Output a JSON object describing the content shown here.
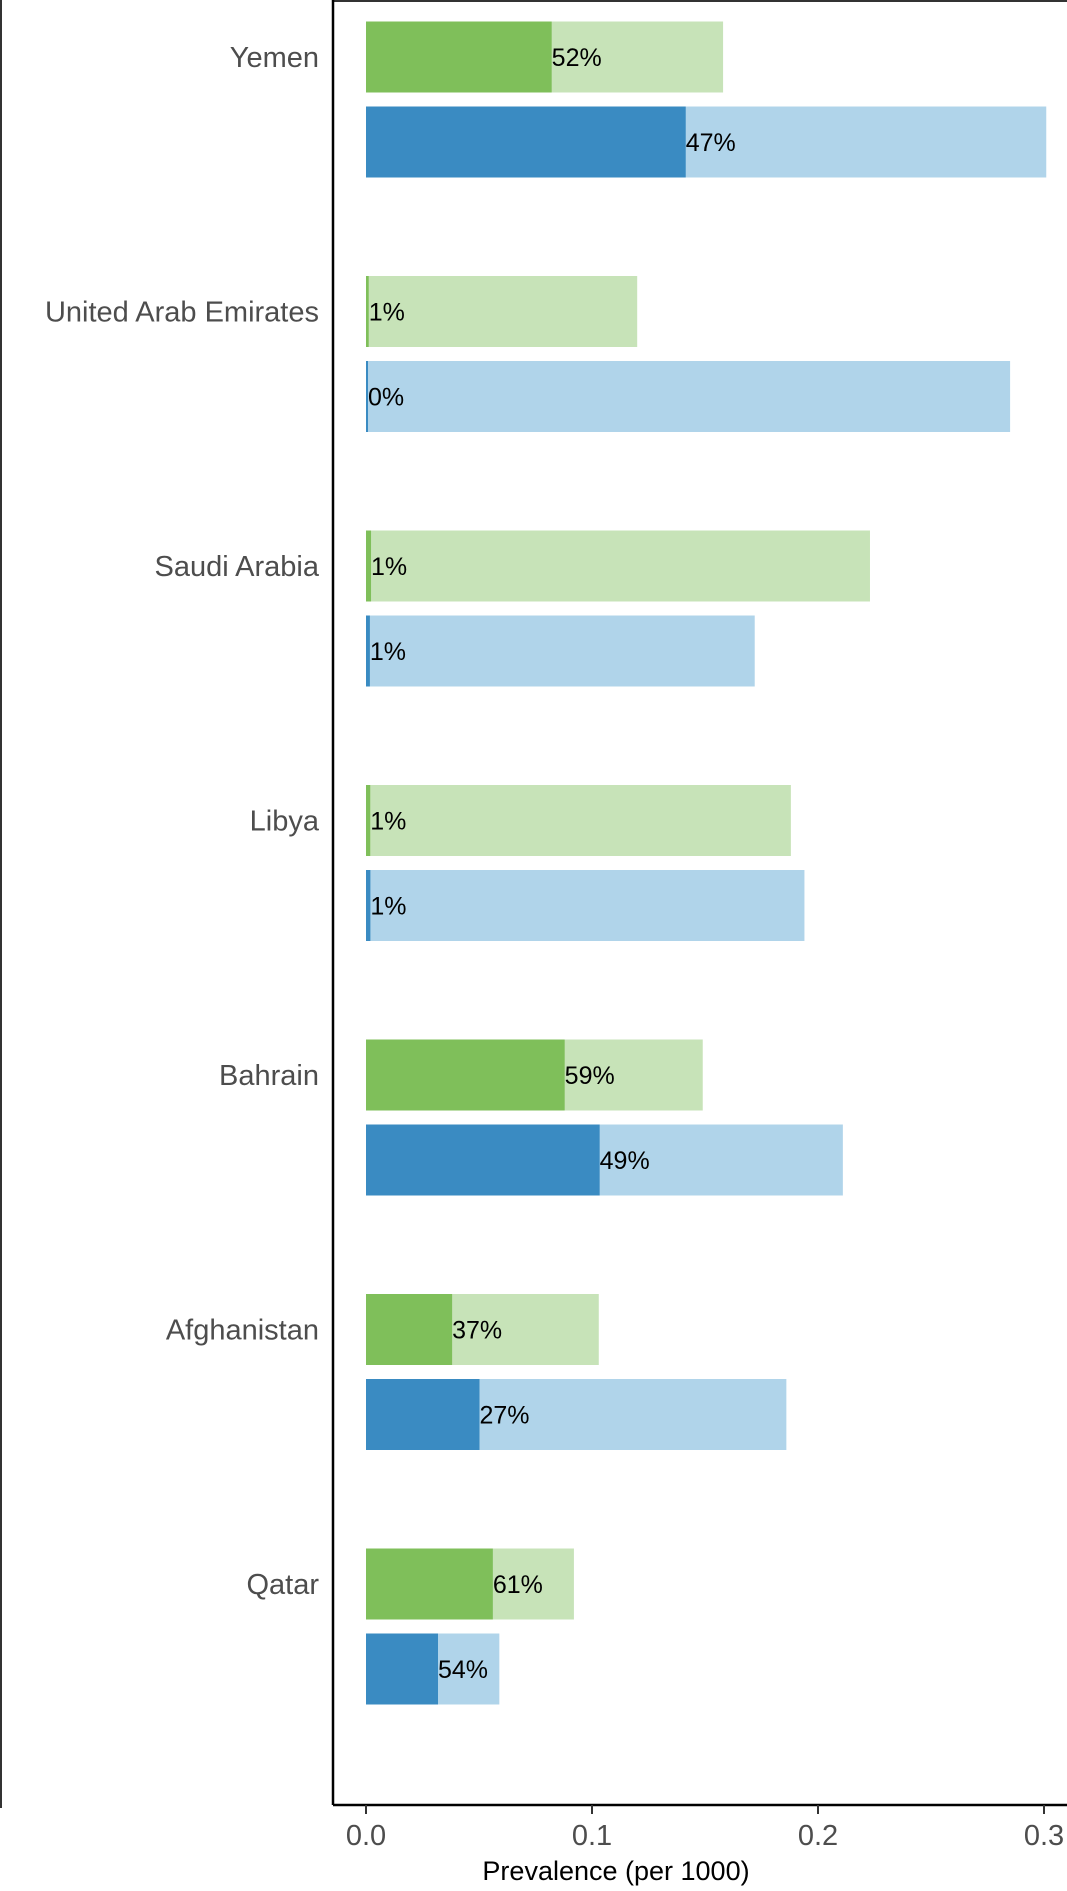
{
  "chart_data": {
    "type": "bar",
    "orientation": "horizontal",
    "xlabel": "Prevalence (per 1000)",
    "ylabel": "",
    "title": "",
    "xlim": [
      0,
      0.31
    ],
    "x_ticks": [
      0.0,
      0.1,
      0.2,
      0.3
    ],
    "x_tick_labels": [
      "0.0",
      "0.1",
      "0.2",
      "0.3"
    ],
    "grid": false,
    "legend": "none",
    "colors": {
      "green_dark": "#7fbf5a",
      "green_light": "#c7e3b8",
      "blue_dark": "#3a8bc2",
      "blue_light": "#b0d4ea"
    },
    "categories": [
      "Yemen",
      "United Arab Emirates",
      "Saudi Arabia",
      "Libya",
      "Bahrain",
      "Afghanistan",
      "Qatar"
    ],
    "series": [
      {
        "color_light": "#c7e3b8",
        "color_dark": "#7fbf5a",
        "total": [
          0.158,
          0.12,
          0.223,
          0.188,
          0.149,
          0.103,
          0.092
        ],
        "percent": [
          52,
          1,
          1,
          1,
          59,
          37,
          61
        ],
        "labels": [
          "52%",
          "1%",
          "1%",
          "1%",
          "59%",
          "37%",
          "61%"
        ]
      },
      {
        "color_light": "#b0d4ea",
        "color_dark": "#3a8bc2",
        "total": [
          0.301,
          0.285,
          0.172,
          0.194,
          0.211,
          0.186,
          0.059
        ],
        "percent": [
          47,
          0,
          1,
          1,
          49,
          27,
          54
        ],
        "labels": [
          "47%",
          "0%",
          "1%",
          "1%",
          "49%",
          "27%",
          "54%"
        ]
      }
    ]
  }
}
